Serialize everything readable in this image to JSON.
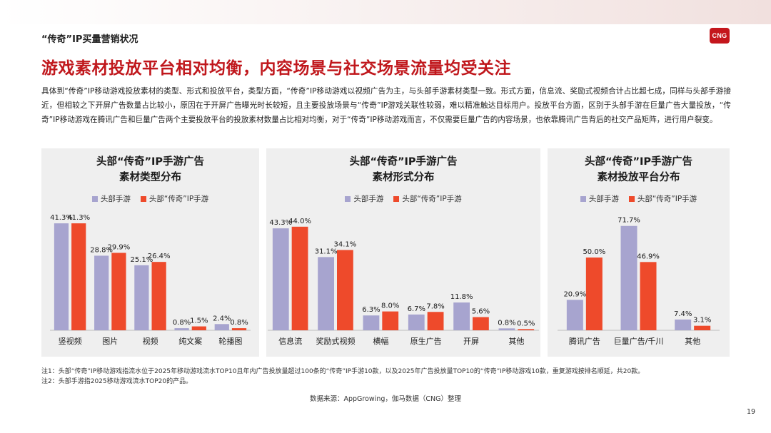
{
  "header": {
    "section_label": "“传奇”IP买量营销状况",
    "logo_text": "CNG",
    "title": "游戏素材投放平台相对均衡，内容场景与社交场景流量均受关注",
    "intro": "具体到“传奇”IP移动游戏投放素材的类型、形式和投放平台，类型方面，“传奇”IP移动游戏以视频广告为主，与头部手游素材类型一致。形式方面，信息流、奖励式视频合计占比超七成，同样与头部手游接近，但相较之下开屏广告数量占比较小，原因在于开屏广告曝光时长较短，且主要投放场景与“传奇”IP游戏关联性较弱，难以精准触达目标用户。投放平台方面，区别于头部手游在巨量广告大量投放，“传奇”IP移动游戏在腾讯广告和巨量广告两个主要投放平台的投放素材数量占比相对均衡，对于“传奇”IP移动游戏而言，不仅需要巨量广告的内容场景，也依靠腾讯广告背后的社交产品矩阵，进行用户裂变。"
  },
  "colors": {
    "series_a": "#a7a4cf",
    "series_b": "#ee4a2b",
    "title_red": "#c0171c",
    "panel_bg": "#efefef"
  },
  "legend": {
    "series_a": "头部手游",
    "series_b": "头部“传奇”IP手游"
  },
  "panels": [
    {
      "title_line1": "头部“传奇”IP手游广告",
      "title_line2": "素材类型分布"
    },
    {
      "title_line1": "头部“传奇”IP手游广告",
      "title_line2": "素材形式分布"
    },
    {
      "title_line1": "头部“传奇”IP手游广告",
      "title_line2": "素材投放平台分布"
    }
  ],
  "chart_data": [
    {
      "type": "bar",
      "title": "头部“传奇”IP手游广告素材类型分布",
      "categories": [
        "竖视频",
        "图片",
        "视频",
        "纯文案",
        "轮播图"
      ],
      "series": [
        {
          "name": "头部手游",
          "values": [
            41.3,
            28.8,
            25.1,
            0.8,
            2.4
          ],
          "labels": [
            "41.3%",
            "28.8%",
            "25.1%",
            "0.8%",
            "2.4%"
          ]
        },
        {
          "name": "头部“传奇”IP手游",
          "values": [
            41.3,
            29.9,
            26.4,
            1.5,
            0.8
          ],
          "labels": [
            "41.3%",
            "29.9%",
            "26.4%",
            "1.5%",
            "0.8%"
          ]
        }
      ],
      "ylim": [
        0,
        50
      ]
    },
    {
      "type": "bar",
      "title": "头部“传奇”IP手游广告素材形式分布",
      "categories": [
        "信息流",
        "奖励式视频",
        "横幅",
        "原生广告",
        "开屏",
        "其他"
      ],
      "series": [
        {
          "name": "头部手游",
          "values": [
            43.3,
            31.1,
            6.3,
            6.7,
            11.8,
            0.8
          ],
          "labels": [
            "43.3%",
            "31.1%",
            "6.3%",
            "6.7%",
            "11.8%",
            "0.8%"
          ]
        },
        {
          "name": "头部“传奇”IP手游",
          "values": [
            44.0,
            34.1,
            8.0,
            7.8,
            5.6,
            0.5
          ],
          "labels": [
            "44.0%",
            "34.1%",
            "8.0%",
            "7.8%",
            "5.6%",
            "0.5%"
          ]
        }
      ],
      "ylim": [
        0,
        50
      ]
    },
    {
      "type": "bar",
      "title": "头部“传奇”IP手游广告素材投放平台分布",
      "categories": [
        "腾讯广告",
        "巨量广告/千川",
        "其他"
      ],
      "series": [
        {
          "name": "头部手游",
          "values": [
            20.9,
            71.7,
            7.4
          ],
          "labels": [
            "20.9%",
            "71.7%",
            "7.4%"
          ]
        },
        {
          "name": "头部“传奇”IP手游",
          "values": [
            50.0,
            46.9,
            3.1
          ],
          "labels": [
            "50.0%",
            "46.9%",
            "3.1%"
          ]
        }
      ],
      "ylim": [
        0,
        80
      ]
    }
  ],
  "footer": {
    "note1": "注1：头部“传奇”IP移动游戏指流水位于2025年移动游戏流水TOP10且年内广告投放量超过100条的“传奇”IP手游10款，以及2025年广告投放量TOP10的“传奇”IP移动游戏10款，重复游戏按排名顺延，共20款。",
    "note2": "注2：头部手游指2025移动游戏流水TOP20的产品。",
    "source": "数据来源：AppGrowing，伽马数据（CNG）整理",
    "page_number": "19"
  }
}
